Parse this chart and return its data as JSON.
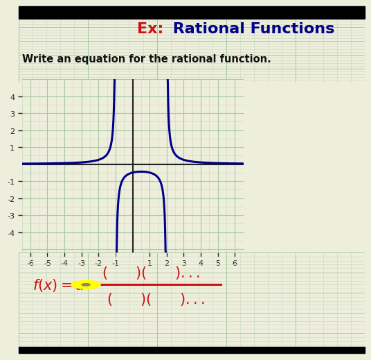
{
  "title_ex": "Ex:",
  "title_main": " Rational Functions",
  "subtitle": "Write an equation for the rational function.",
  "background_color": "#eeeedd",
  "grid_color_minor": "#c8d8c0",
  "grid_color_major": "#a8c8a0",
  "curve_color": "#00008B",
  "text_color_red": "#cc1111",
  "text_color_blue": "#00008B",
  "text_color_dark": "#111111",
  "axis_color": "#222222",
  "xlim": [
    -6.5,
    6.5
  ],
  "ylim": [
    -5.2,
    5.0
  ],
  "xticks": [
    -6,
    -5,
    -4,
    -3,
    -2,
    -1,
    1,
    2,
    3,
    4,
    5,
    6
  ],
  "yticks": [
    -4,
    -3,
    -2,
    -1,
    1,
    2,
    3,
    4
  ],
  "va1": -1.0,
  "va2": 2.0,
  "dot_color": "#ffff00",
  "border_color": "#111111"
}
